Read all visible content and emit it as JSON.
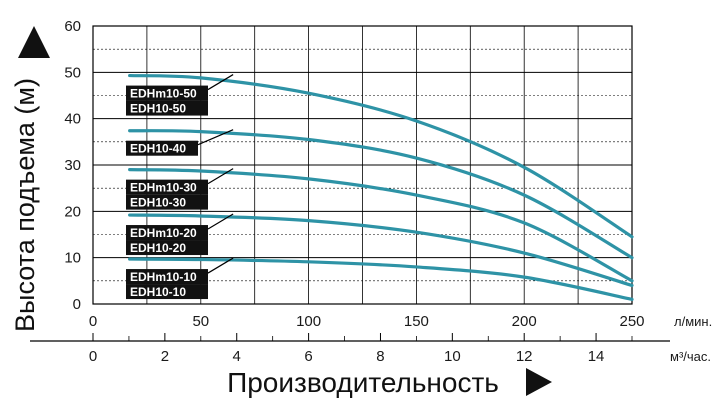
{
  "chart_data": {
    "type": "line",
    "ylabel": "Высота подъема (м)",
    "xlabel": "Производительность",
    "y_axis": {
      "range": [
        0,
        60
      ],
      "ticks": [
        0,
        10,
        20,
        30,
        40,
        50,
        60
      ]
    },
    "x_axis_primary": {
      "unit": "л/мин.",
      "range": [
        0,
        250
      ],
      "ticks": [
        0,
        50,
        100,
        150,
        200,
        250
      ]
    },
    "x_axis_secondary": {
      "unit": "м³/час.",
      "ticks": [
        0,
        2,
        4,
        6,
        8,
        10,
        12,
        14
      ]
    },
    "grid": true,
    "line_color": "#2e93a6",
    "series": [
      {
        "labels": [
          "EDHm10-50",
          "EDH10-50"
        ],
        "x": [
          17,
          50,
          100,
          150,
          200,
          250
        ],
        "y": [
          49.3,
          48.8,
          45.5,
          39.5,
          29.5,
          14.5
        ]
      },
      {
        "labels": [
          "EDH10-40"
        ],
        "x": [
          17,
          50,
          100,
          150,
          200,
          250
        ],
        "y": [
          37.4,
          37.2,
          35.5,
          31.5,
          23.5,
          10.0
        ]
      },
      {
        "labels": [
          "EDHm10-30",
          "EDH10-30"
        ],
        "x": [
          17,
          50,
          100,
          150,
          200,
          250
        ],
        "y": [
          29.0,
          28.7,
          27.0,
          23.5,
          17.5,
          5.0
        ]
      },
      {
        "labels": [
          "EDHm10-20",
          "EDH10-20"
        ],
        "x": [
          17,
          50,
          100,
          150,
          200,
          250
        ],
        "y": [
          19.2,
          19.0,
          18.0,
          15.5,
          11.0,
          4.0
        ]
      },
      {
        "labels": [
          "EDHm10-10",
          "EDH10-10"
        ],
        "x": [
          17,
          50,
          100,
          150,
          200,
          250
        ],
        "y": [
          9.7,
          9.6,
          9.1,
          8.0,
          5.8,
          1.0
        ]
      }
    ]
  }
}
